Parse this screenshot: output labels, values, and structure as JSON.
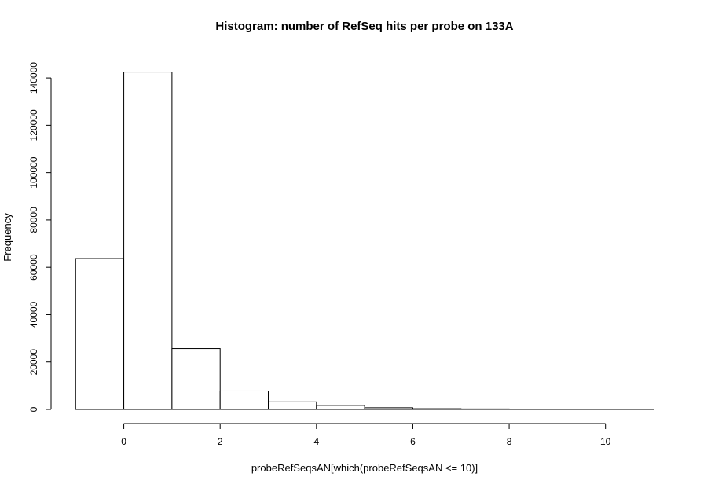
{
  "chart_data": {
    "type": "bar",
    "title": "Histogram: number of RefSeq hits per probe on 133A",
    "xlabel": "probeRefSeqsAN[which(probeRefSeqsAN <= 10)]",
    "ylabel": "Frequency",
    "bin_edges": [
      -1,
      0,
      1,
      2,
      3,
      4,
      5,
      6,
      7,
      8,
      9,
      10,
      11
    ],
    "values": [
      63700,
      142500,
      25700,
      7800,
      3200,
      1700,
      700,
      300,
      200,
      100,
      50,
      30
    ],
    "xlim": [
      -1.2,
      11
    ],
    "ylim": [
      0,
      147000
    ],
    "x_ticks": [
      0,
      2,
      4,
      6,
      8,
      10
    ],
    "x_tick_labels": [
      "0",
      "2",
      "4",
      "6",
      "8",
      "10"
    ],
    "y_ticks": [
      0,
      20000,
      40000,
      60000,
      80000,
      100000,
      120000,
      140000
    ],
    "y_tick_labels": [
      "0",
      "20000",
      "40000",
      "60000",
      "80000",
      "100000",
      "120000",
      "140000"
    ],
    "grid": false,
    "colors": {
      "bar_fill": "#ffffff",
      "bar_stroke": "#000000"
    }
  }
}
